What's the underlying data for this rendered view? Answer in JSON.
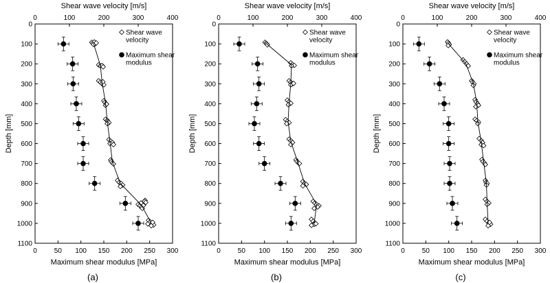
{
  "figure": {
    "panel_labels": [
      "(a)",
      "(b)",
      "(c)"
    ]
  },
  "chart_data": [
    {
      "type": "scatter",
      "panel": "(a)",
      "xlabel_bottom": "Maximum shear modulus [MPa]",
      "xlabel_top": "Shear wave velocity [m/s]",
      "ylabel": "Depth [mm]",
      "bottom_xlim": [
        0,
        300
      ],
      "bottom_xticks": [
        0,
        50,
        100,
        150,
        200,
        250,
        300
      ],
      "top_xlim": [
        0,
        400
      ],
      "top_xticks": [
        0,
        100,
        200,
        300,
        400
      ],
      "ylim": [
        0,
        1100
      ],
      "yticks": [
        0,
        100,
        200,
        300,
        400,
        500,
        600,
        700,
        800,
        900,
        1000,
        1100
      ],
      "y_inverted": true,
      "grid": false,
      "legend": {
        "placement": "top-right",
        "entries": [
          {
            "label_lines": [
              "Shear wave",
              "velocity"
            ],
            "marker": "open-diamond"
          },
          {
            "label_lines": [
              "Maximum shear",
              "modulus"
            ],
            "marker": "filled-circle"
          }
        ]
      },
      "series": [
        {
          "name": "Shear wave velocity",
          "axis": "top",
          "marker": "open-diamond",
          "points": [
            [
              165,
              92
            ],
            [
              168,
              97
            ],
            [
              172,
              90
            ],
            [
              175,
              100
            ],
            [
              170,
              103
            ],
            [
              178,
              95
            ],
            [
              185,
              205
            ],
            [
              190,
              210
            ],
            [
              195,
              208
            ],
            [
              198,
              215
            ],
            [
              185,
              285
            ],
            [
              190,
              292
            ],
            [
              195,
              300
            ],
            [
              200,
              305
            ],
            [
              197,
              290
            ],
            [
              200,
              385
            ],
            [
              203,
              393
            ],
            [
              207,
              400
            ],
            [
              205,
              408
            ],
            [
              208,
              402
            ],
            [
              205,
              478
            ],
            [
              210,
              483
            ],
            [
              212,
              490
            ],
            [
              215,
              495
            ],
            [
              210,
              500
            ],
            [
              215,
              580
            ],
            [
              220,
              588
            ],
            [
              225,
              595
            ],
            [
              218,
              600
            ],
            [
              228,
              605
            ],
            [
              220,
              682
            ],
            [
              222,
              690
            ],
            [
              225,
              697
            ],
            [
              228,
              702
            ],
            [
              240,
              785
            ],
            [
              245,
              795
            ],
            [
              250,
              800
            ],
            [
              255,
              808
            ],
            [
              248,
              815
            ],
            [
              300,
              905
            ],
            [
              305,
              912
            ],
            [
              310,
              918
            ],
            [
              315,
              910
            ],
            [
              308,
              898
            ],
            [
              312,
              925
            ],
            [
              320,
              885
            ],
            [
              318,
              890
            ],
            [
              322,
              895
            ],
            [
              330,
              985
            ],
            [
              335,
              993
            ],
            [
              340,
              1000
            ],
            [
              345,
              1008
            ],
            [
              338,
              1012
            ],
            [
              342,
              995
            ],
            [
              328,
              1003
            ]
          ]
        },
        {
          "name": "Shear wave velocity (fit)",
          "axis": "top",
          "marker": "line",
          "points": [
            [
              170,
              97
            ],
            [
              190,
              208
            ],
            [
              195,
              295
            ],
            [
              205,
              395
            ],
            [
              210,
              490
            ],
            [
              218,
              592
            ],
            [
              225,
              692
            ],
            [
              248,
              800
            ],
            [
              310,
              910
            ],
            [
              338,
              1000
            ]
          ]
        },
        {
          "name": "Maximum shear modulus",
          "axis": "bottom",
          "marker": "filled-circle",
          "points": [
            [
              62,
              100
            ],
            [
              82,
              200
            ],
            [
              83,
              300
            ],
            [
              90,
              400
            ],
            [
              95,
              500
            ],
            [
              105,
              600
            ],
            [
              105,
              700
            ],
            [
              130,
              800
            ],
            [
              197,
              900
            ],
            [
              225,
              1000
            ]
          ]
        }
      ]
    },
    {
      "type": "scatter",
      "panel": "(b)",
      "xlabel_bottom": "Maximum shear modulus [MPa]",
      "xlabel_top": "Shear wave velocity [m/s]",
      "ylabel": "Depth [mm]",
      "bottom_xlim": [
        0,
        300
      ],
      "bottom_xticks": [
        0,
        50,
        100,
        150,
        200,
        250,
        300
      ],
      "top_xlim": [
        0,
        400
      ],
      "top_xticks": [
        0,
        100,
        200,
        300,
        400
      ],
      "ylim": [
        0,
        1100
      ],
      "yticks": [
        0,
        100,
        200,
        300,
        400,
        500,
        600,
        700,
        800,
        900,
        1000,
        1100
      ],
      "y_inverted": true,
      "grid": false,
      "legend": {
        "placement": "top-right",
        "entries": [
          {
            "label_lines": [
              "Shear wave",
              "velocity"
            ],
            "marker": "open-diamond"
          },
          {
            "label_lines": [
              "Maximum shear",
              "modulus"
            ],
            "marker": "filled-circle"
          }
        ]
      },
      "series": [
        {
          "name": "Shear wave velocity",
          "axis": "top",
          "marker": "open-diamond",
          "points": [
            [
              135,
              92
            ],
            [
              138,
              97
            ],
            [
              140,
              100
            ],
            [
              142,
              105
            ],
            [
              210,
              195
            ],
            [
              215,
              203
            ],
            [
              220,
              208
            ],
            [
              212,
              210
            ],
            [
              205,
              285
            ],
            [
              210,
              292
            ],
            [
              215,
              300
            ],
            [
              210,
              305
            ],
            [
              218,
              298
            ],
            [
              200,
              382
            ],
            [
              205,
              390
            ],
            [
              210,
              398
            ],
            [
              203,
              405
            ],
            [
              195,
              480
            ],
            [
              200,
              488
            ],
            [
              205,
              495
            ],
            [
              198,
              500
            ],
            [
              205,
              578
            ],
            [
              210,
              585
            ],
            [
              215,
              595
            ],
            [
              210,
              605
            ],
            [
              225,
              682
            ],
            [
              228,
              690
            ],
            [
              232,
              697
            ],
            [
              235,
              700
            ],
            [
              245,
              790
            ],
            [
              250,
              800
            ],
            [
              255,
              805
            ],
            [
              245,
              812
            ],
            [
              275,
              890
            ],
            [
              280,
              898
            ],
            [
              285,
              905
            ],
            [
              292,
              912
            ],
            [
              288,
              918
            ],
            [
              278,
              925
            ],
            [
              270,
              980
            ],
            [
              275,
              990
            ],
            [
              280,
              998
            ],
            [
              278,
              1005
            ],
            [
              270,
              1010
            ],
            [
              283,
              1002
            ]
          ]
        },
        {
          "name": "Shear wave velocity (fit)",
          "axis": "top",
          "marker": "line",
          "points": [
            [
              140,
              100
            ],
            [
              212,
              205
            ],
            [
              210,
              295
            ],
            [
              205,
              395
            ],
            [
              202,
              490
            ],
            [
              210,
              590
            ],
            [
              230,
              692
            ],
            [
              250,
              800
            ],
            [
              285,
              905
            ],
            [
              278,
              1000
            ]
          ]
        },
        {
          "name": "Maximum shear modulus",
          "axis": "bottom",
          "marker": "filled-circle",
          "points": [
            [
              45,
              100
            ],
            [
              85,
              200
            ],
            [
              88,
              300
            ],
            [
              83,
              400
            ],
            [
              78,
              500
            ],
            [
              88,
              600
            ],
            [
              100,
              700
            ],
            [
              135,
              800
            ],
            [
              167,
              900
            ],
            [
              158,
              1000
            ]
          ]
        }
      ]
    },
    {
      "type": "scatter",
      "panel": "(c)",
      "xlabel_bottom": "Maximum shear modulus [MPa]",
      "xlabel_top": "Shear wave velocity [m/s]",
      "ylabel": "Depth [mm]",
      "bottom_xlim": [
        0,
        300
      ],
      "bottom_xticks": [
        0,
        50,
        100,
        150,
        200,
        250,
        300
      ],
      "top_xlim": [
        0,
        400
      ],
      "top_xticks": [
        0,
        100,
        200,
        300,
        400
      ],
      "ylim": [
        0,
        1100
      ],
      "yticks": [
        0,
        100,
        200,
        300,
        400,
        500,
        600,
        700,
        800,
        900,
        1000,
        1100
      ],
      "y_inverted": true,
      "grid": false,
      "legend": {
        "placement": "top-right",
        "entries": [
          {
            "label_lines": [
              "Shear wave",
              "velocity"
            ],
            "marker": "open-diamond"
          },
          {
            "label_lines": [
              "Maximum shear",
              "modulus"
            ],
            "marker": "filled-circle"
          }
        ]
      },
      "series": [
        {
          "name": "Shear wave velocity",
          "axis": "top",
          "marker": "open-diamond",
          "points": [
            [
              130,
              90
            ],
            [
              133,
              97
            ],
            [
              135,
              103
            ],
            [
              132,
              108
            ],
            [
              175,
              180
            ],
            [
              180,
              190
            ],
            [
              185,
              200
            ],
            [
              190,
              210
            ],
            [
              200,
              285
            ],
            [
              203,
              292
            ],
            [
              207,
              300
            ],
            [
              205,
              308
            ],
            [
              210,
              380
            ],
            [
              213,
              390
            ],
            [
              217,
              400
            ],
            [
              220,
              408
            ],
            [
              212,
              415
            ],
            [
              210,
              478
            ],
            [
              215,
              485
            ],
            [
              220,
              492
            ],
            [
              218,
              500
            ],
            [
              222,
              575
            ],
            [
              228,
              585
            ],
            [
              232,
              595
            ],
            [
              228,
              605
            ],
            [
              235,
              610
            ],
            [
              230,
              680
            ],
            [
              233,
              690
            ],
            [
              237,
              697
            ],
            [
              240,
              705
            ],
            [
              240,
              785
            ],
            [
              242,
              795
            ],
            [
              245,
              800
            ],
            [
              243,
              808
            ],
            [
              240,
              880
            ],
            [
              245,
              890
            ],
            [
              250,
              898
            ],
            [
              245,
              905
            ],
            [
              240,
              980
            ],
            [
              245,
              990
            ],
            [
              250,
              998
            ],
            [
              255,
              1005
            ],
            [
              248,
              1012
            ],
            [
              252,
              995
            ]
          ]
        },
        {
          "name": "Shear wave velocity (fit)",
          "axis": "top",
          "marker": "line",
          "points": [
            [
              133,
              100
            ],
            [
              183,
              198
            ],
            [
              205,
              298
            ],
            [
              215,
              398
            ],
            [
              218,
              490
            ],
            [
              228,
              592
            ],
            [
              235,
              692
            ],
            [
              243,
              800
            ],
            [
              245,
              895
            ],
            [
              248,
              1000
            ]
          ]
        },
        {
          "name": "Maximum shear modulus",
          "axis": "bottom",
          "marker": "filled-circle",
          "points": [
            [
              35,
              100
            ],
            [
              58,
              200
            ],
            [
              80,
              300
            ],
            [
              90,
              400
            ],
            [
              100,
              500
            ],
            [
              100,
              600
            ],
            [
              102,
              700
            ],
            [
              102,
              800
            ],
            [
              108,
              900
            ],
            [
              118,
              1000
            ]
          ]
        }
      ]
    }
  ]
}
